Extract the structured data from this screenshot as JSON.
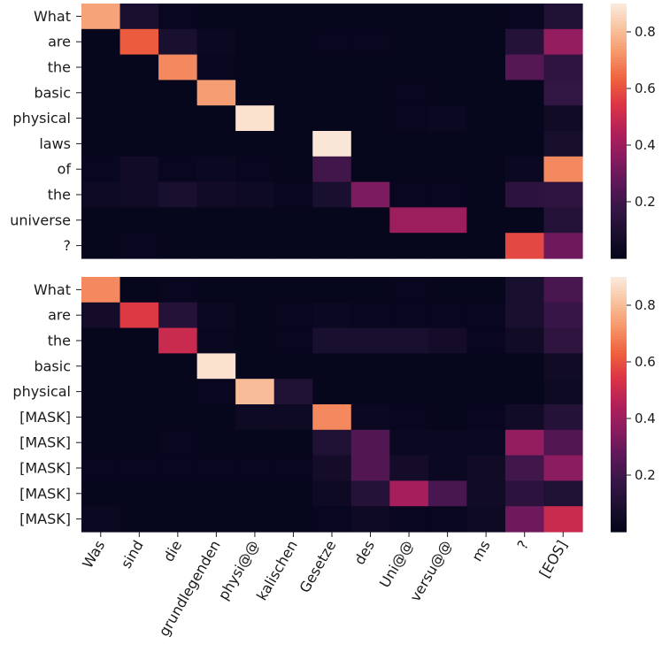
{
  "chart_data": [
    {
      "type": "heatmap",
      "title": "",
      "x_tokens": [
        "Was",
        "sind",
        "die",
        "grundlegenden",
        "physi@@",
        "kalischen",
        "Gesetze",
        "des",
        "Uni@@",
        "versu@@",
        "ms",
        "?",
        "[EOS]"
      ],
      "y_tokens": [
        "What",
        "are",
        "the",
        "basic",
        "physical",
        "laws",
        "of",
        "the",
        "universe",
        "?"
      ],
      "values": [
        [
          0.75,
          0.08,
          0.02,
          0.01,
          0.01,
          0.01,
          0.01,
          0.01,
          0.01,
          0.01,
          0.01,
          0.02,
          0.1
        ],
        [
          0.01,
          0.62,
          0.08,
          0.03,
          0.01,
          0.01,
          0.02,
          0.02,
          0.01,
          0.01,
          0.01,
          0.12,
          0.38
        ],
        [
          0.01,
          0.01,
          0.7,
          0.02,
          0.01,
          0.01,
          0.01,
          0.01,
          0.01,
          0.01,
          0.01,
          0.25,
          0.15
        ],
        [
          0.01,
          0.01,
          0.01,
          0.74,
          0.01,
          0.01,
          0.01,
          0.01,
          0.02,
          0.01,
          0.01,
          0.01,
          0.16
        ],
        [
          0.01,
          0.01,
          0.01,
          0.01,
          0.88,
          0.01,
          0.01,
          0.01,
          0.02,
          0.03,
          0.01,
          0.01,
          0.05
        ],
        [
          0.01,
          0.01,
          0.01,
          0.01,
          0.01,
          0.01,
          0.89,
          0.01,
          0.01,
          0.01,
          0.01,
          0.01,
          0.07
        ],
        [
          0.02,
          0.05,
          0.02,
          0.03,
          0.02,
          0.01,
          0.2,
          0.01,
          0.01,
          0.01,
          0.01,
          0.03,
          0.7
        ],
        [
          0.04,
          0.05,
          0.08,
          0.05,
          0.04,
          0.02,
          0.08,
          0.33,
          0.02,
          0.02,
          0.01,
          0.14,
          0.15
        ],
        [
          0.01,
          0.01,
          0.01,
          0.01,
          0.01,
          0.01,
          0.01,
          0.01,
          0.4,
          0.4,
          0.01,
          0.01,
          0.12
        ],
        [
          0.01,
          0.02,
          0.01,
          0.01,
          0.01,
          0.01,
          0.01,
          0.01,
          0.01,
          0.01,
          0.01,
          0.58,
          0.3
        ]
      ],
      "vmin": 0.0,
      "vmax": 0.9,
      "colormap": "rocket",
      "colorbar_ticks": [
        0.2,
        0.4,
        0.6,
        0.8
      ]
    },
    {
      "type": "heatmap",
      "title": "",
      "x_tokens": [
        "Was",
        "sind",
        "die",
        "grundlegenden",
        "physi@@",
        "kalischen",
        "Gesetze",
        "des",
        "Uni@@",
        "versu@@",
        "ms",
        "?",
        "[EOS]"
      ],
      "y_tokens": [
        "What",
        "are",
        "the",
        "basic",
        "physical",
        "[MASK]",
        "[MASK]",
        "[MASK]",
        "[MASK]",
        "[MASK]"
      ],
      "values": [
        [
          0.7,
          0.01,
          0.02,
          0.01,
          0.01,
          0.01,
          0.01,
          0.01,
          0.02,
          0.01,
          0.01,
          0.08,
          0.22
        ],
        [
          0.06,
          0.55,
          0.12,
          0.03,
          0.01,
          0.02,
          0.03,
          0.02,
          0.02,
          0.02,
          0.02,
          0.08,
          0.18
        ],
        [
          0.01,
          0.01,
          0.5,
          0.02,
          0.01,
          0.02,
          0.08,
          0.08,
          0.08,
          0.06,
          0.02,
          0.05,
          0.15
        ],
        [
          0.01,
          0.01,
          0.01,
          0.88,
          0.01,
          0.01,
          0.01,
          0.01,
          0.01,
          0.01,
          0.01,
          0.01,
          0.05
        ],
        [
          0.01,
          0.01,
          0.01,
          0.02,
          0.8,
          0.1,
          0.01,
          0.01,
          0.01,
          0.01,
          0.01,
          0.01,
          0.04
        ],
        [
          0.01,
          0.01,
          0.01,
          0.01,
          0.04,
          0.04,
          0.7,
          0.03,
          0.02,
          0.01,
          0.02,
          0.05,
          0.12
        ],
        [
          0.01,
          0.01,
          0.02,
          0.01,
          0.01,
          0.01,
          0.1,
          0.24,
          0.03,
          0.03,
          0.03,
          0.38,
          0.24
        ],
        [
          0.02,
          0.02,
          0.02,
          0.02,
          0.02,
          0.02,
          0.06,
          0.24,
          0.06,
          0.03,
          0.05,
          0.2,
          0.36
        ],
        [
          0.01,
          0.01,
          0.01,
          0.01,
          0.01,
          0.01,
          0.04,
          0.12,
          0.42,
          0.22,
          0.05,
          0.14,
          0.1
        ],
        [
          0.03,
          0.01,
          0.01,
          0.01,
          0.01,
          0.01,
          0.02,
          0.04,
          0.02,
          0.02,
          0.04,
          0.3,
          0.5
        ]
      ],
      "vmin": 0.0,
      "vmax": 0.9,
      "colormap": "rocket",
      "colorbar_ticks": [
        0.2,
        0.4,
        0.6,
        0.8
      ]
    }
  ]
}
